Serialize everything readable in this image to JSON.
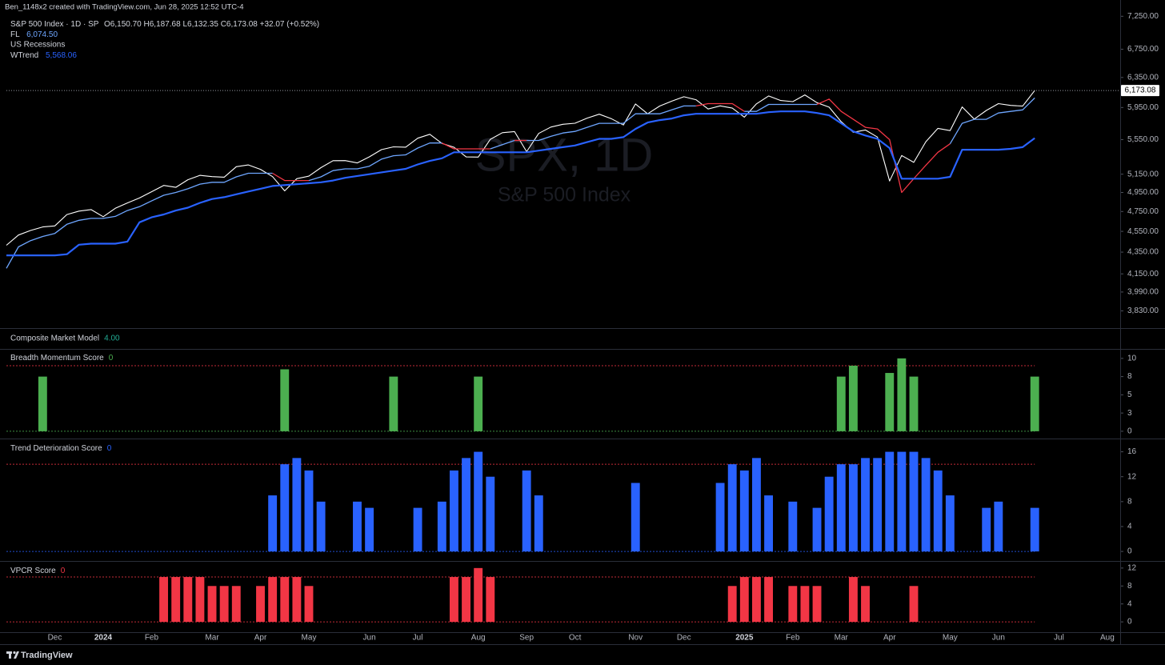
{
  "header": {
    "credit": "Ben_1148x2 created with TradingView.com, Jun 28, 2025 12:52 UTC-4"
  },
  "legend_extra": "US Recessions",
  "footer": {
    "brand": "TradingView"
  },
  "chart_data": [
    {
      "type": "line",
      "log_scale": true,
      "ohlc": "O6,150.70  H6,187.68  L6,132.35  C6,173.08  +32.07 (+0.52%)",
      "last_price_label": "6,173.08",
      "watermark": [
        "SPX, 1D",
        "S&P 500 Index"
      ],
      "categories": [
        null,
        null,
        null,
        null,
        "Dec",
        null,
        null,
        null,
        "2024",
        null,
        null,
        null,
        "Feb",
        null,
        null,
        null,
        null,
        "Mar",
        null,
        null,
        null,
        "Apr",
        null,
        null,
        null,
        "May",
        null,
        null,
        null,
        null,
        "Jun",
        null,
        null,
        null,
        "Jul",
        null,
        null,
        null,
        null,
        "Aug",
        null,
        null,
        null,
        "Sep",
        null,
        null,
        null,
        "Oct",
        null,
        null,
        null,
        null,
        "Nov",
        null,
        null,
        null,
        "Dec",
        null,
        null,
        null,
        null,
        "2025",
        null,
        null,
        null,
        "Feb",
        null,
        null,
        null,
        "Mar",
        null,
        null,
        null,
        "Apr",
        null,
        null,
        null,
        null,
        "May",
        null,
        null,
        null,
        "Jun",
        null,
        null,
        null,
        null,
        "Jul",
        null,
        null,
        null,
        "Aug"
      ],
      "series": [
        {
          "name": "S&P 500 Index · 1D · SP",
          "color": "#ffffff",
          "values": [
            4415,
            4514,
            4559,
            4594,
            4604,
            4719,
            4754,
            4770,
            4697,
            4783,
            4839,
            4891,
            4958,
            5026,
            5005,
            5088,
            5137,
            5123,
            5117,
            5234,
            5254,
            5204,
            5123,
            4967,
            5100,
            5128,
            5223,
            5303,
            5304,
            5277,
            5347,
            5431,
            5464,
            5460,
            5567,
            5615,
            5505,
            5459,
            5346,
            5344,
            5554,
            5634,
            5648,
            5408,
            5626,
            5703,
            5738,
            5751,
            5815,
            5864,
            5808,
            5729,
            5996,
            5870,
            5969,
            6032,
            6090,
            6051,
            5931,
            5971,
            5942,
            5827,
            5997,
            6101,
            6041,
            6026,
            6115,
            6013,
            5955,
            5770,
            5639,
            5668,
            5581,
            5074,
            5363,
            5283,
            5525,
            5687,
            5660,
            5958,
            5803,
            5912,
            6000,
            5977,
            5968,
            6173.08,
            null,
            null,
            null,
            null,
            null,
            null
          ]
        },
        {
          "name": "FL",
          "color": "#6ea6ff",
          "last_label": "6,074.50",
          "values": [
            4200,
            4400,
            4460,
            4500,
            4530,
            4620,
            4660,
            4680,
            4680,
            4700,
            4760,
            4800,
            4860,
            4920,
            4950,
            4990,
            5040,
            5060,
            5060,
            5120,
            5160,
            5160,
            5160,
            5080,
            5080,
            5080,
            5120,
            5190,
            5210,
            5210,
            5240,
            5320,
            5360,
            5370,
            5450,
            5510,
            5510,
            5440,
            5440,
            5440,
            5440,
            5490,
            5540,
            5540,
            5540,
            5590,
            5630,
            5650,
            5700,
            5750,
            5750,
            5750,
            5870,
            5870,
            5870,
            5920,
            5970,
            5970,
            6000,
            6000,
            6000,
            5900,
            5900,
            5990,
            5990,
            5990,
            5990,
            5990,
            6060,
            5900,
            5800,
            5700,
            5680,
            5550,
            4950,
            5100,
            5250,
            5400,
            5500,
            5750,
            5800,
            5800,
            5880,
            5900,
            5920,
            6074.5,
            null,
            null,
            null,
            null,
            null,
            null
          ],
          "colors": [
            "#f23645",
            "#6ea6ff",
            "#6ea6ff",
            "#6ea6ff",
            "#6ea6ff",
            "#6ea6ff",
            "#6ea6ff",
            "#6ea6ff",
            "#6ea6ff",
            "#6ea6ff",
            "#6ea6ff",
            "#6ea6ff",
            "#6ea6ff",
            "#6ea6ff",
            "#6ea6ff",
            "#6ea6ff",
            "#6ea6ff",
            "#6ea6ff",
            "#6ea6ff",
            "#6ea6ff",
            "#6ea6ff",
            "#6ea6ff",
            "#6ea6ff",
            "#f23645",
            "#f23645",
            "#f23645",
            "#6ea6ff",
            "#6ea6ff",
            "#6ea6ff",
            "#6ea6ff",
            "#6ea6ff",
            "#6ea6ff",
            "#6ea6ff",
            "#6ea6ff",
            "#6ea6ff",
            "#6ea6ff",
            "#6ea6ff",
            "#f23645",
            "#f23645",
            "#f23645",
            "#f23645",
            "#6ea6ff",
            "#6ea6ff",
            "#f23645",
            "#6ea6ff",
            "#6ea6ff",
            "#6ea6ff",
            "#6ea6ff",
            "#6ea6ff",
            "#6ea6ff",
            "#6ea6ff",
            "#6ea6ff",
            "#6ea6ff",
            "#6ea6ff",
            "#6ea6ff",
            "#6ea6ff",
            "#6ea6ff",
            "#6ea6ff",
            "#f23645",
            "#f23645",
            "#f23645",
            "#f23645",
            "#6ea6ff",
            "#6ea6ff",
            "#6ea6ff",
            "#6ea6ff",
            "#6ea6ff",
            "#6ea6ff",
            "#f23645",
            "#f23645",
            "#f23645",
            "#f23645",
            "#f23645",
            "#f23645",
            "#f23645",
            "#f23645",
            "#f23645",
            "#f23645",
            "#f23645",
            "#6ea6ff",
            "#6ea6ff",
            "#6ea6ff",
            "#6ea6ff",
            "#6ea6ff",
            "#6ea6ff",
            "#6ea6ff",
            null,
            null,
            null,
            null,
            null,
            null
          ]
        },
        {
          "name": "WTrend",
          "color": "#2962ff",
          "last_label": "5,568.06",
          "values": [
            4320,
            4320,
            4320,
            4320,
            4320,
            4330,
            4420,
            4430,
            4430,
            4430,
            4450,
            4640,
            4690,
            4720,
            4760,
            4790,
            4840,
            4880,
            4900,
            4930,
            4960,
            4990,
            5020,
            5030,
            5040,
            5050,
            5060,
            5080,
            5110,
            5130,
            5150,
            5170,
            5190,
            5210,
            5260,
            5300,
            5330,
            5400,
            5400,
            5400,
            5400,
            5400,
            5400,
            5400,
            5420,
            5440,
            5460,
            5480,
            5520,
            5560,
            5560,
            5580,
            5680,
            5760,
            5790,
            5810,
            5850,
            5870,
            5870,
            5870,
            5870,
            5870,
            5870,
            5890,
            5900,
            5900,
            5900,
            5880,
            5850,
            5750,
            5650,
            5600,
            5560,
            5450,
            5100,
            5100,
            5100,
            5100,
            5120,
            5430,
            5430,
            5430,
            5430,
            5440,
            5460,
            5568.06,
            null,
            null,
            null,
            null,
            null,
            null
          ]
        }
      ],
      "ylim": [
        3690,
        7510
      ],
      "yticks": [
        {
          "value": 7250,
          "label": "7,250.00"
        },
        {
          "value": 6750,
          "label": "6,750.00"
        },
        {
          "value": 6350,
          "label": "6,350.00"
        },
        {
          "value": 5950,
          "label": "5,950.00"
        },
        {
          "value": 5550,
          "label": "5,550.00"
        },
        {
          "value": 5150,
          "label": "5,150.00"
        },
        {
          "value": 4950,
          "label": "4,950.00"
        },
        {
          "value": 4750,
          "label": "4,750.00"
        },
        {
          "value": 4550,
          "label": "4,550.00"
        },
        {
          "value": 4350,
          "label": "4,350.00"
        },
        {
          "value": 4150,
          "label": "4,150.00"
        },
        {
          "value": 3990,
          "label": "3,990.00"
        },
        {
          "value": 3830,
          "label": "3,830.00"
        }
      ]
    },
    {
      "type": "indicator",
      "title": "Composite Market Model",
      "value_label": "4.00",
      "color": "#22ab94"
    },
    {
      "type": "bar",
      "title": "Breadth Momentum Score",
      "value_label": "0",
      "color": "#4caf50",
      "values": [
        0,
        0,
        0,
        7.5,
        0,
        0,
        0,
        0,
        0,
        0,
        0,
        0,
        0,
        0,
        0,
        0,
        0,
        0,
        0,
        0,
        0,
        0,
        0,
        8.5,
        0,
        0,
        0,
        0,
        0,
        0,
        0,
        0,
        7.5,
        0,
        0,
        0,
        0,
        0,
        0,
        7.5,
        0,
        0,
        0,
        0,
        0,
        0,
        0,
        0,
        0,
        0,
        0,
        0,
        0,
        0,
        0,
        0,
        0,
        0,
        0,
        0,
        0,
        0,
        0,
        0,
        0,
        0,
        0,
        0,
        0,
        7.5,
        9,
        0,
        0,
        8,
        10,
        7.5,
        0,
        0,
        0,
        0,
        0,
        0,
        0,
        0,
        0,
        7.5,
        null,
        null,
        null,
        null,
        null,
        null
      ],
      "ylim": [
        -1,
        11.3
      ],
      "yticks": [
        10,
        {
          "value": 7.5,
          "label": "8"
        },
        5,
        {
          "value": 2.5,
          "label": "3"
        },
        0
      ],
      "levels": [
        {
          "value": 9,
          "color": "#f23645"
        },
        {
          "value": 0,
          "color": "#4caf50"
        }
      ]
    },
    {
      "type": "bar",
      "title": "Trend Deterioration Score",
      "value_label": "0",
      "color": "#2962ff",
      "values": [
        0,
        0,
        0,
        0,
        0,
        0,
        0,
        0,
        0,
        0,
        0,
        0,
        0,
        0,
        0,
        0,
        0,
        0,
        0,
        0,
        0,
        0,
        9,
        14,
        15,
        13,
        8,
        0,
        0,
        8,
        7,
        0,
        0,
        0,
        7,
        0,
        8,
        13,
        15,
        16,
        12,
        0,
        0,
        13,
        9,
        0,
        0,
        0,
        0,
        0,
        0,
        0,
        11,
        0,
        0,
        0,
        0,
        0,
        0,
        11,
        14,
        13,
        15,
        9,
        0,
        8,
        0,
        7,
        12,
        14,
        14,
        15,
        15,
        16,
        16,
        16,
        15,
        13,
        9,
        0,
        0,
        7,
        8,
        0,
        0,
        7,
        null,
        null,
        null,
        null,
        null,
        null
      ],
      "ylim": [
        -1.4,
        18
      ],
      "yticks": [
        16,
        12,
        8,
        4,
        0
      ],
      "levels": [
        {
          "value": 14,
          "color": "#f23645"
        },
        {
          "value": 0,
          "color": "#2962ff"
        }
      ]
    },
    {
      "type": "bar",
      "title": "VPCR Score",
      "value_label": "0",
      "color": "#f23645",
      "values": [
        0,
        0,
        0,
        0,
        0,
        0,
        0,
        0,
        0,
        0,
        0,
        0,
        0,
        10,
        10,
        10,
        10,
        8,
        8,
        8,
        0,
        8,
        10,
        10,
        10,
        8,
        0,
        0,
        0,
        0,
        0,
        0,
        0,
        0,
        0,
        0,
        0,
        10,
        10,
        12,
        10,
        0,
        0,
        0,
        0,
        0,
        0,
        0,
        0,
        0,
        0,
        0,
        0,
        0,
        0,
        0,
        0,
        0,
        0,
        0,
        8,
        10,
        10,
        10,
        0,
        8,
        8,
        8,
        0,
        0,
        10,
        8,
        0,
        0,
        0,
        8,
        0,
        0,
        0,
        0,
        0,
        0,
        0,
        0,
        0,
        0,
        null,
        null,
        null,
        null,
        null,
        null
      ],
      "ylim": [
        -2.3,
        13.4
      ],
      "yticks": [
        12,
        8,
        4,
        0
      ],
      "levels": [
        {
          "value": 10,
          "color": "#f23645"
        },
        {
          "value": 0,
          "color": "#f23645"
        }
      ]
    }
  ]
}
